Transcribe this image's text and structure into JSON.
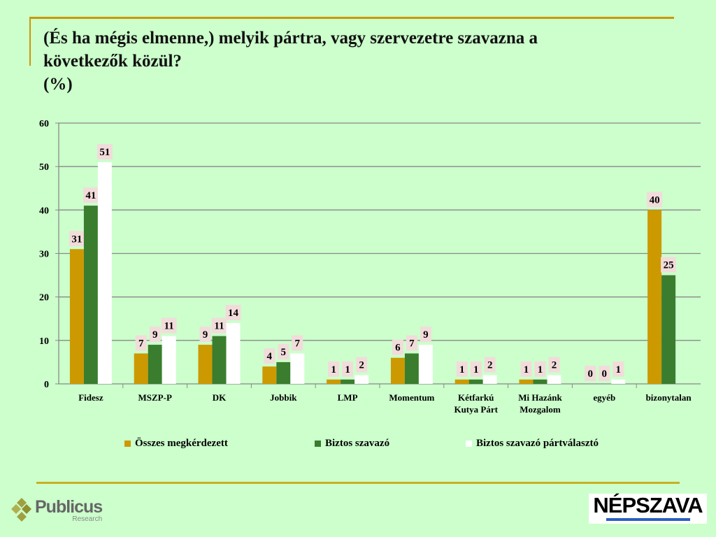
{
  "title": {
    "line1": "(És ha mégis elmenne,) melyik pártra, vagy szervezetre szavazna a",
    "line2": "következők közül?",
    "line3": "(%)"
  },
  "colors": {
    "background": "#ccffcc",
    "series1": "#cc9900",
    "series2": "#3a7d2e",
    "series3": "#ffffff",
    "label_bg": "#f2dcdb",
    "accent": "#cc9900"
  },
  "chart_data": {
    "type": "bar",
    "title": "(És ha mégis elmenne,) melyik pártra, vagy szervezetre szavazna a következők közül? (%)",
    "categories": [
      "Fidesz",
      "MSZP-P",
      "DK",
      "Jobbik",
      "LMP",
      "Momentum",
      "Kétfarkú\nKutya Párt",
      "Mi Hazánk\nMozgalom",
      "egyéb",
      "bizonytalan"
    ],
    "series": [
      {
        "name": "Összes megkérdezett",
        "values": [
          31,
          7,
          9,
          4,
          1,
          6,
          1,
          1,
          0,
          40
        ]
      },
      {
        "name": "Biztos szavazó",
        "values": [
          41,
          9,
          11,
          5,
          1,
          7,
          1,
          1,
          0,
          25
        ]
      },
      {
        "name": "Biztos szavazó pártválasztó",
        "values": [
          51,
          11,
          14,
          7,
          2,
          9,
          2,
          2,
          1,
          null
        ]
      }
    ],
    "ylim": [
      0,
      60
    ],
    "yticks": [
      0,
      10,
      20,
      30,
      40,
      50,
      60
    ],
    "grid": true,
    "legend": "bottom",
    "xlabel": "",
    "ylabel": ""
  },
  "logos": {
    "left": "Publicus Research",
    "right": "NÉPSZAVA"
  }
}
